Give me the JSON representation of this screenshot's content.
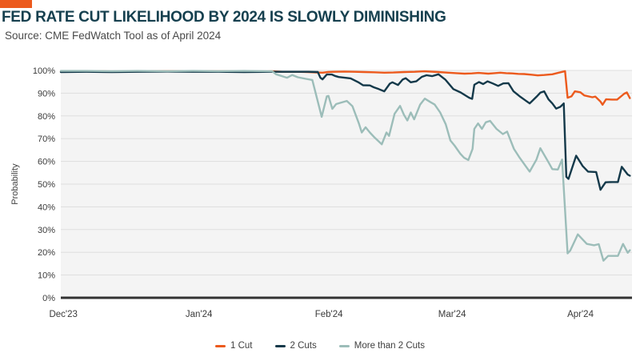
{
  "header": {
    "title": "FED RATE CUT LIKELIHOOD BY 2024 IS SLOWLY DIMINISHING",
    "source": "Source: CME FedWatch Tool as of April 2024",
    "accent_color": "#EC5A1D",
    "title_color": "#16404F"
  },
  "chart_data": {
    "type": "line",
    "title": "FED RATE CUT LIKELIHOOD BY 2024 IS SLOWLY DIMINISHING",
    "subtitle": "Source: CME FedWatch Tool as of April 2024",
    "xlabel": "",
    "ylabel": "Probability",
    "ylim": [
      0,
      100
    ],
    "x_domain_days": [
      0,
      134
    ],
    "grid": true,
    "legend_position": "bottom",
    "plot_bg": "#F4F4F4",
    "grid_color": "#DEDEDE",
    "axis_color": "#333333",
    "tick_color": "#3A3A3A",
    "y_ticks": [
      {
        "value": 0,
        "label": "0%"
      },
      {
        "value": 10,
        "label": "10%"
      },
      {
        "value": 20,
        "label": "20%"
      },
      {
        "value": 30,
        "label": "30%"
      },
      {
        "value": 40,
        "label": "40%"
      },
      {
        "value": 50,
        "label": "50%"
      },
      {
        "value": 60,
        "label": "60%"
      },
      {
        "value": 70,
        "label": "70%"
      },
      {
        "value": 80,
        "label": "80%"
      },
      {
        "value": 90,
        "label": "90%"
      },
      {
        "value": 100,
        "label": "100%"
      }
    ],
    "x_ticks": [
      {
        "label": "Dec'23",
        "day": 0.6
      },
      {
        "label": "Jan'24",
        "day": 32.4
      },
      {
        "label": "Feb'24",
        "day": 62.9
      },
      {
        "label": "Mar'24",
        "day": 91.8
      },
      {
        "label": "Apr'24",
        "day": 121.9
      }
    ],
    "series": [
      {
        "name": "1 Cut",
        "color": "#EC5A1D",
        "points": [
          [
            0,
            99.5
          ],
          [
            5,
            99.6
          ],
          [
            10,
            99.6
          ],
          [
            15,
            99.5
          ],
          [
            20,
            99.6
          ],
          [
            25,
            99.7
          ],
          [
            31,
            99.7
          ],
          [
            36,
            99.6
          ],
          [
            42,
            99.6
          ],
          [
            46,
            99.5
          ],
          [
            49.6,
            99.6
          ],
          [
            52,
            99.4
          ],
          [
            55.2,
            99.4
          ],
          [
            58,
            99.3
          ],
          [
            60,
            99.1
          ],
          [
            61.4,
            99.0
          ],
          [
            62.7,
            99.3
          ],
          [
            64,
            99.4
          ],
          [
            66.5,
            99.5
          ],
          [
            69,
            99.4
          ],
          [
            71.2,
            99.3
          ],
          [
            73.5,
            99.2
          ],
          [
            75.9,
            99.0
          ],
          [
            78,
            99.1
          ],
          [
            80.6,
            99.3
          ],
          [
            83,
            99.4
          ],
          [
            85.3,
            99.6
          ],
          [
            88.6,
            99.3
          ],
          [
            90.9,
            99.0
          ],
          [
            92.8,
            98.8
          ],
          [
            94.7,
            98.6
          ],
          [
            96.4,
            98.7
          ],
          [
            98,
            98.9
          ],
          [
            100.3,
            98.6
          ],
          [
            101.7,
            98.8
          ],
          [
            103.1,
            99.0
          ],
          [
            104.5,
            98.8
          ],
          [
            105.9,
            98.7
          ],
          [
            107.3,
            98.5
          ],
          [
            108.7,
            98.4
          ],
          [
            110.6,
            98.1
          ],
          [
            111.9,
            97.8
          ],
          [
            113.4,
            98.0
          ],
          [
            115.3,
            98.3
          ],
          [
            116.8,
            99.0
          ],
          [
            118.3,
            99.7
          ],
          [
            118.9,
            88.0
          ],
          [
            119.8,
            88.6
          ],
          [
            120.6,
            90.8
          ],
          [
            121.9,
            90.4
          ],
          [
            122.8,
            89.0
          ],
          [
            124.7,
            88.2
          ],
          [
            125.4,
            88.5
          ],
          [
            126.6,
            86.3
          ],
          [
            127.1,
            84.9
          ],
          [
            127.9,
            87.3
          ],
          [
            129.4,
            87.2
          ],
          [
            130.5,
            87.2
          ],
          [
            132.2,
            89.8
          ],
          [
            132.8,
            90.3
          ],
          [
            133.5,
            87.8
          ]
        ]
      },
      {
        "name": "2 Cuts",
        "color": "#14394A",
        "points": [
          [
            0,
            99.3
          ],
          [
            6,
            99.4
          ],
          [
            12,
            99.3
          ],
          [
            18,
            99.4
          ],
          [
            25,
            99.5
          ],
          [
            31,
            99.4
          ],
          [
            37,
            99.4
          ],
          [
            43,
            99.3
          ],
          [
            49.6,
            99.4
          ],
          [
            54,
            99.4
          ],
          [
            58,
            99.4
          ],
          [
            60.3,
            99.3
          ],
          [
            60.9,
            96.8
          ],
          [
            61.4,
            96.1
          ],
          [
            62.4,
            98.2
          ],
          [
            63.6,
            98.2
          ],
          [
            64.3,
            97.6
          ],
          [
            65.2,
            97.1
          ],
          [
            68,
            96.5
          ],
          [
            69.9,
            94.7
          ],
          [
            70.9,
            93.5
          ],
          [
            72.5,
            93.4
          ],
          [
            73.4,
            92.6
          ],
          [
            74.6,
            91.8
          ],
          [
            75.9,
            90.8
          ],
          [
            77.2,
            94.2
          ],
          [
            77.8,
            94.8
          ],
          [
            79.1,
            93.6
          ],
          [
            80.2,
            96.0
          ],
          [
            80.9,
            96.6
          ],
          [
            82.1,
            94.8
          ],
          [
            83.4,
            95.2
          ],
          [
            84.7,
            97.2
          ],
          [
            85.8,
            97.9
          ],
          [
            87.1,
            97.5
          ],
          [
            88.6,
            98.3
          ],
          [
            90.2,
            96.0
          ],
          [
            92.1,
            91.8
          ],
          [
            93.8,
            90.3
          ],
          [
            95.8,
            88.0
          ],
          [
            96.5,
            87.5
          ],
          [
            97,
            93.7
          ],
          [
            98.1,
            94.9
          ],
          [
            99.1,
            94.0
          ],
          [
            100.1,
            95.2
          ],
          [
            101.3,
            94.3
          ],
          [
            102.6,
            93.2
          ],
          [
            103.8,
            94.3
          ],
          [
            105,
            94.4
          ],
          [
            106.2,
            90.8
          ],
          [
            107.8,
            88.4
          ],
          [
            109.1,
            86.7
          ],
          [
            110,
            85.5
          ],
          [
            111.6,
            88.4
          ],
          [
            112.5,
            90.2
          ],
          [
            113.4,
            90.8
          ],
          [
            114.4,
            87.3
          ],
          [
            115.3,
            85.5
          ],
          [
            116.2,
            83.2
          ],
          [
            117.2,
            84.0
          ],
          [
            118,
            85.5
          ],
          [
            118.6,
            53.2
          ],
          [
            119.1,
            52.3
          ],
          [
            120.9,
            62.5
          ],
          [
            122.4,
            58.0
          ],
          [
            123.7,
            55.5
          ],
          [
            125.6,
            55.3
          ],
          [
            126.6,
            47.5
          ],
          [
            127.8,
            50.8
          ],
          [
            129.3,
            50.9
          ],
          [
            130.7,
            50.9
          ],
          [
            131.6,
            57.6
          ],
          [
            133,
            54.2
          ],
          [
            133.5,
            53.7
          ]
        ]
      },
      {
        "name": "More than 2 Cuts",
        "color": "#9CBDB9",
        "points": [
          [
            0,
            99.8
          ],
          [
            6,
            99.8
          ],
          [
            12,
            99.7
          ],
          [
            18,
            99.8
          ],
          [
            25,
            99.7
          ],
          [
            31,
            99.8
          ],
          [
            37,
            99.7
          ],
          [
            43,
            99.8
          ],
          [
            49.6,
            99.6
          ],
          [
            50.5,
            98.3
          ],
          [
            52.4,
            97.2
          ],
          [
            53.1,
            96.8
          ],
          [
            54.3,
            98.0
          ],
          [
            55.6,
            97.0
          ],
          [
            57.5,
            96.3
          ],
          [
            59,
            95.8
          ],
          [
            61.2,
            79.6
          ],
          [
            62.4,
            88.6
          ],
          [
            62.8,
            88.8
          ],
          [
            63.7,
            83.1
          ],
          [
            64.6,
            85.2
          ],
          [
            67.1,
            86.6
          ],
          [
            68.4,
            84.3
          ],
          [
            69.9,
            76.8
          ],
          [
            70.6,
            72.7
          ],
          [
            71.5,
            75.0
          ],
          [
            72.5,
            72.7
          ],
          [
            73.6,
            70.5
          ],
          [
            75.3,
            67.5
          ],
          [
            76.4,
            72.7
          ],
          [
            77,
            71.2
          ],
          [
            78.3,
            80.9
          ],
          [
            79.6,
            84.4
          ],
          [
            80.5,
            80.5
          ],
          [
            81.3,
            78.0
          ],
          [
            82.1,
            81.5
          ],
          [
            82.9,
            78.5
          ],
          [
            84.3,
            85.0
          ],
          [
            85.4,
            87.6
          ],
          [
            86.6,
            86.2
          ],
          [
            87.7,
            85.0
          ],
          [
            89,
            81.5
          ],
          [
            90.3,
            76.3
          ],
          [
            91.4,
            69.2
          ],
          [
            92.4,
            66.9
          ],
          [
            93.7,
            63.4
          ],
          [
            94.6,
            61.6
          ],
          [
            95.6,
            60.6
          ],
          [
            96.6,
            65.5
          ],
          [
            97,
            74.3
          ],
          [
            97.9,
            76.7
          ],
          [
            98.8,
            74.3
          ],
          [
            99.7,
            77.2
          ],
          [
            100.7,
            77.8
          ],
          [
            102.2,
            74.3
          ],
          [
            103.7,
            72.0
          ],
          [
            104.7,
            73.1
          ],
          [
            106.3,
            65.5
          ],
          [
            107.5,
            62.0
          ],
          [
            109.1,
            57.8
          ],
          [
            110,
            55.5
          ],
          [
            111.6,
            60.8
          ],
          [
            112.5,
            65.8
          ],
          [
            114.4,
            59.6
          ],
          [
            115.3,
            56.6
          ],
          [
            116.6,
            56.4
          ],
          [
            117.6,
            60.8
          ],
          [
            118.9,
            19.5
          ],
          [
            119.5,
            20.7
          ],
          [
            121.3,
            27.9
          ],
          [
            123.4,
            23.7
          ],
          [
            125.1,
            23.1
          ],
          [
            126.2,
            23.6
          ],
          [
            127.3,
            16.3
          ],
          [
            128.4,
            18.4
          ],
          [
            130.7,
            18.4
          ],
          [
            131.9,
            23.7
          ],
          [
            133,
            19.8
          ],
          [
            133.5,
            20.9
          ]
        ]
      }
    ]
  }
}
